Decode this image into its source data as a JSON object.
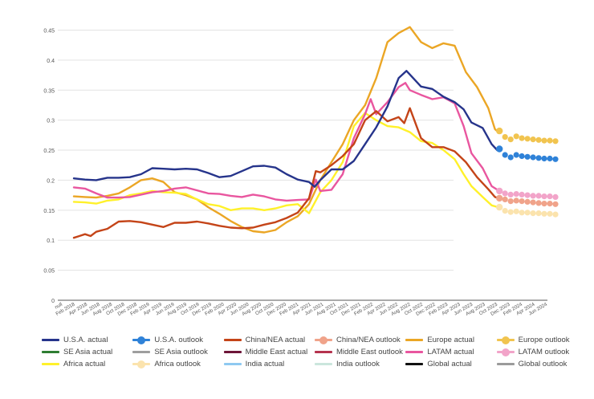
{
  "chart_data": {
    "type": "line",
    "title": "",
    "xlabel": "",
    "ylabel": "",
    "ylim": [
      0,
      0.46
    ],
    "yticks": [
      "0",
      "0.05",
      "0.1",
      "0.15",
      "0.2",
      "0.25",
      "0.3",
      "0.35",
      "0.4",
      "0.45"
    ],
    "x_ticks": [
      "null",
      "Feb 2018",
      "Apr 2018",
      "Jun 2018",
      "Aug 2018",
      "Oct 2018",
      "Dec 2018",
      "Feb 2019",
      "Apr 2019",
      "Jun 2019",
      "Aug 2019",
      "Oct 2019",
      "Dec 2019",
      "Feb 2020",
      "Apr 2020",
      "Jun 2020",
      "Aug 2020",
      "Oct 2020",
      "Dec 2020",
      "Feb 2021",
      "Apr 2021",
      "Jun 2021",
      "Aug 2021",
      "Oct 2021",
      "Dec 2021",
      "Feb 2022",
      "Apr 2022",
      "Jun 2022",
      "Aug 2022",
      "Oct 2022",
      "Dec 2022",
      "Feb 2023",
      "Apr 2023",
      "Jun 2023",
      "Aug 2023",
      "Oct 2023",
      "Dec 2023",
      "Feb 2024",
      "Apr 2024",
      "Jun 2024"
    ],
    "legend_position": "bottom",
    "series": [
      {
        "name": "U.S.A. actual",
        "color": "#26348b",
        "style": "line",
        "points": [
          [
            1,
            0.203
          ],
          [
            2,
            0.201
          ],
          [
            3,
            0.2
          ],
          [
            4,
            0.204
          ],
          [
            5,
            0.204
          ],
          [
            6,
            0.205
          ],
          [
            7,
            0.21
          ],
          [
            8,
            0.22
          ],
          [
            9,
            0.219
          ],
          [
            10,
            0.218
          ],
          [
            11,
            0.219
          ],
          [
            12,
            0.218
          ],
          [
            13,
            0.212
          ],
          [
            14,
            0.205
          ],
          [
            15,
            0.207
          ],
          [
            16,
            0.215
          ],
          [
            17,
            0.223
          ],
          [
            18,
            0.224
          ],
          [
            19,
            0.221
          ],
          [
            20,
            0.21
          ],
          [
            21,
            0.201
          ],
          [
            22,
            0.197
          ],
          [
            22.5,
            0.189
          ],
          [
            23,
            0.2
          ],
          [
            24,
            0.218
          ],
          [
            25,
            0.218
          ],
          [
            26,
            0.232
          ],
          [
            27,
            0.26
          ],
          [
            28,
            0.288
          ],
          [
            29,
            0.323
          ],
          [
            30,
            0.37
          ],
          [
            30.7,
            0.382
          ],
          [
            31,
            0.376
          ],
          [
            32,
            0.356
          ],
          [
            33,
            0.352
          ],
          [
            34,
            0.339
          ],
          [
            35,
            0.33
          ],
          [
            35.8,
            0.318
          ],
          [
            36.5,
            0.296
          ],
          [
            37.5,
            0.287
          ],
          [
            38.3,
            0.26
          ],
          [
            38.8,
            0.25
          ]
        ]
      },
      {
        "name": "U.S.A. outlook",
        "color": "#2f82d8",
        "style": "dots",
        "points": [
          [
            39,
            0.252
          ],
          [
            39.5,
            0.242
          ],
          [
            40,
            0.238
          ],
          [
            40.5,
            0.242
          ],
          [
            41,
            0.24
          ],
          [
            41.5,
            0.239
          ],
          [
            42,
            0.238
          ],
          [
            42.5,
            0.237
          ],
          [
            43,
            0.236
          ],
          [
            43.5,
            0.236
          ],
          [
            44,
            0.235
          ]
        ]
      },
      {
        "name": "China/NEA actual",
        "color": "#c44418",
        "style": "line",
        "points": [
          [
            1,
            0.104
          ],
          [
            1.5,
            0.107
          ],
          [
            2,
            0.11
          ],
          [
            2.5,
            0.107
          ],
          [
            3,
            0.114
          ],
          [
            4,
            0.119
          ],
          [
            5,
            0.131
          ],
          [
            6,
            0.132
          ],
          [
            7,
            0.13
          ],
          [
            8,
            0.126
          ],
          [
            9,
            0.122
          ],
          [
            10,
            0.129
          ],
          [
            11,
            0.129
          ],
          [
            12,
            0.131
          ],
          [
            13,
            0.128
          ],
          [
            14,
            0.124
          ],
          [
            15,
            0.121
          ],
          [
            16,
            0.12
          ],
          [
            17,
            0.121
          ],
          [
            18,
            0.126
          ],
          [
            19,
            0.13
          ],
          [
            20,
            0.137
          ],
          [
            21,
            0.146
          ],
          [
            22,
            0.17
          ],
          [
            22.6,
            0.215
          ],
          [
            23,
            0.213
          ],
          [
            24,
            0.225
          ],
          [
            25,
            0.24
          ],
          [
            26,
            0.26
          ],
          [
            27,
            0.3
          ],
          [
            28,
            0.315
          ],
          [
            29,
            0.298
          ],
          [
            30,
            0.305
          ],
          [
            30.5,
            0.295
          ],
          [
            31,
            0.32
          ],
          [
            32,
            0.27
          ],
          [
            33,
            0.255
          ],
          [
            34,
            0.255
          ],
          [
            35,
            0.248
          ],
          [
            36,
            0.23
          ],
          [
            37,
            0.205
          ],
          [
            38,
            0.185
          ],
          [
            38.6,
            0.172
          ],
          [
            38.9,
            0.17
          ]
        ]
      },
      {
        "name": "China/NEA outlook",
        "color": "#f0a38a",
        "style": "dots",
        "points": [
          [
            39,
            0.17
          ],
          [
            39.5,
            0.168
          ],
          [
            40,
            0.165
          ],
          [
            40.5,
            0.166
          ],
          [
            41,
            0.165
          ],
          [
            41.5,
            0.164
          ],
          [
            42,
            0.163
          ],
          [
            42.5,
            0.162
          ],
          [
            43,
            0.161
          ],
          [
            43.5,
            0.161
          ],
          [
            44,
            0.16
          ]
        ]
      },
      {
        "name": "Europe actual",
        "color": "#eba625",
        "style": "line",
        "points": [
          [
            1,
            0.173
          ],
          [
            2,
            0.172
          ],
          [
            3,
            0.171
          ],
          [
            4,
            0.174
          ],
          [
            5,
            0.178
          ],
          [
            6,
            0.188
          ],
          [
            7,
            0.2
          ],
          [
            8,
            0.203
          ],
          [
            9,
            0.197
          ],
          [
            10,
            0.18
          ],
          [
            11,
            0.175
          ],
          [
            12,
            0.168
          ],
          [
            13,
            0.155
          ],
          [
            14,
            0.144
          ],
          [
            15,
            0.132
          ],
          [
            16,
            0.122
          ],
          [
            17,
            0.115
          ],
          [
            18,
            0.113
          ],
          [
            19,
            0.117
          ],
          [
            20,
            0.13
          ],
          [
            21,
            0.14
          ],
          [
            22,
            0.16
          ],
          [
            23,
            0.2
          ],
          [
            24,
            0.23
          ],
          [
            25,
            0.26
          ],
          [
            26,
            0.3
          ],
          [
            27,
            0.325
          ],
          [
            28,
            0.37
          ],
          [
            29,
            0.43
          ],
          [
            30,
            0.445
          ],
          [
            31,
            0.455
          ],
          [
            32,
            0.43
          ],
          [
            33,
            0.42
          ],
          [
            34,
            0.428
          ],
          [
            35,
            0.424
          ],
          [
            36,
            0.38
          ],
          [
            37,
            0.355
          ],
          [
            38,
            0.32
          ],
          [
            38.6,
            0.285
          ],
          [
            38.9,
            0.28
          ]
        ]
      },
      {
        "name": "Europe outlook",
        "color": "#f1c44f",
        "style": "dots",
        "points": [
          [
            39,
            0.282
          ],
          [
            39.5,
            0.272
          ],
          [
            40,
            0.268
          ],
          [
            40.5,
            0.273
          ],
          [
            41,
            0.27
          ],
          [
            41.5,
            0.269
          ],
          [
            42,
            0.268
          ],
          [
            42.5,
            0.267
          ],
          [
            43,
            0.266
          ],
          [
            43.5,
            0.266
          ],
          [
            44,
            0.265
          ]
        ]
      },
      {
        "name": "SE Asia actual",
        "color": "#2e7d32",
        "style": "line",
        "points": []
      },
      {
        "name": "SE Asia outlook",
        "color": "#9e9e9e",
        "style": "line",
        "points": []
      },
      {
        "name": "Middle East actual",
        "color": "#6d1538",
        "style": "line",
        "points": []
      },
      {
        "name": "Middle East outlook",
        "color": "#b5334e",
        "style": "line",
        "points": []
      },
      {
        "name": "LATAM actual",
        "color": "#e9569f",
        "style": "line",
        "points": [
          [
            1,
            0.188
          ],
          [
            2,
            0.186
          ],
          [
            3,
            0.178
          ],
          [
            4,
            0.171
          ],
          [
            5,
            0.171
          ],
          [
            6,
            0.172
          ],
          [
            7,
            0.176
          ],
          [
            8,
            0.18
          ],
          [
            9,
            0.182
          ],
          [
            10,
            0.186
          ],
          [
            11,
            0.188
          ],
          [
            12,
            0.183
          ],
          [
            13,
            0.178
          ],
          [
            14,
            0.177
          ],
          [
            15,
            0.174
          ],
          [
            16,
            0.172
          ],
          [
            17,
            0.176
          ],
          [
            18,
            0.173
          ],
          [
            19,
            0.168
          ],
          [
            20,
            0.166
          ],
          [
            21,
            0.167
          ],
          [
            22,
            0.168
          ],
          [
            22.6,
            0.201
          ],
          [
            23,
            0.182
          ],
          [
            24,
            0.184
          ],
          [
            25,
            0.21
          ],
          [
            26,
            0.27
          ],
          [
            27,
            0.31
          ],
          [
            27.5,
            0.335
          ],
          [
            28,
            0.31
          ],
          [
            29,
            0.33
          ],
          [
            30,
            0.355
          ],
          [
            30.6,
            0.362
          ],
          [
            31,
            0.35
          ],
          [
            32,
            0.342
          ],
          [
            33,
            0.335
          ],
          [
            34,
            0.338
          ],
          [
            35,
            0.328
          ],
          [
            35.8,
            0.29
          ],
          [
            36.5,
            0.245
          ],
          [
            37.5,
            0.22
          ],
          [
            38.3,
            0.19
          ],
          [
            38.9,
            0.183
          ]
        ]
      },
      {
        "name": "LATAM outlook",
        "color": "#f2a4c9",
        "style": "dots",
        "points": [
          [
            39,
            0.182
          ],
          [
            39.5,
            0.178
          ],
          [
            40,
            0.176
          ],
          [
            40.5,
            0.177
          ],
          [
            41,
            0.176
          ],
          [
            41.5,
            0.175
          ],
          [
            42,
            0.174
          ],
          [
            42.5,
            0.174
          ],
          [
            43,
            0.173
          ],
          [
            43.5,
            0.173
          ],
          [
            44,
            0.172
          ]
        ]
      },
      {
        "name": "Africa actual",
        "color": "#fff12a",
        "style": "line",
        "points": [
          [
            1,
            0.164
          ],
          [
            2,
            0.163
          ],
          [
            3,
            0.161
          ],
          [
            4,
            0.166
          ],
          [
            5,
            0.168
          ],
          [
            6,
            0.175
          ],
          [
            7,
            0.178
          ],
          [
            8,
            0.182
          ],
          [
            9,
            0.18
          ],
          [
            10,
            0.179
          ],
          [
            11,
            0.177
          ],
          [
            12,
            0.168
          ],
          [
            13,
            0.16
          ],
          [
            14,
            0.157
          ],
          [
            15,
            0.15
          ],
          [
            16,
            0.153
          ],
          [
            17,
            0.153
          ],
          [
            18,
            0.15
          ],
          [
            19,
            0.153
          ],
          [
            20,
            0.158
          ],
          [
            21,
            0.16
          ],
          [
            22,
            0.145
          ],
          [
            23,
            0.18
          ],
          [
            24,
            0.2
          ],
          [
            25,
            0.23
          ],
          [
            26,
            0.29
          ],
          [
            27,
            0.312
          ],
          [
            28,
            0.3
          ],
          [
            29,
            0.29
          ],
          [
            30,
            0.288
          ],
          [
            31,
            0.28
          ],
          [
            32,
            0.265
          ],
          [
            33,
            0.262
          ],
          [
            34,
            0.25
          ],
          [
            35,
            0.235
          ],
          [
            35.8,
            0.21
          ],
          [
            36.5,
            0.19
          ],
          [
            37.5,
            0.172
          ],
          [
            38.3,
            0.158
          ],
          [
            38.9,
            0.155
          ]
        ]
      },
      {
        "name": "Africa outlook",
        "color": "#fbe3ad",
        "style": "dots",
        "points": [
          [
            39,
            0.155
          ],
          [
            39.5,
            0.149
          ],
          [
            40,
            0.147
          ],
          [
            40.5,
            0.148
          ],
          [
            41,
            0.146
          ],
          [
            41.5,
            0.146
          ],
          [
            42,
            0.145
          ],
          [
            42.5,
            0.145
          ],
          [
            43,
            0.144
          ],
          [
            43.5,
            0.144
          ],
          [
            44,
            0.143
          ]
        ]
      },
      {
        "name": "India actual",
        "color": "#8ec9f1",
        "style": "line",
        "points": []
      },
      {
        "name": "India outlook",
        "color": "#cbe6dd",
        "style": "line",
        "points": []
      },
      {
        "name": "Global actual",
        "color": "#111111",
        "style": "line",
        "points": []
      },
      {
        "name": "Global outlook",
        "color": "#9b9b9b",
        "style": "line",
        "points": []
      }
    ]
  }
}
